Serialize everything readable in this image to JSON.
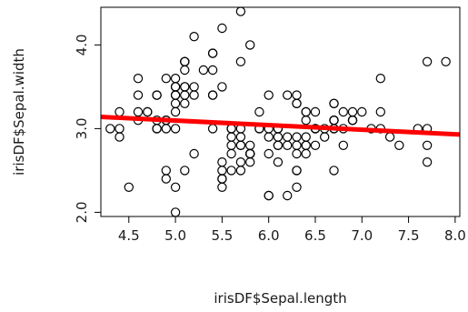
{
  "chart_data": {
    "type": "scatter",
    "title": "",
    "xlabel": "irisDF$Sepal.length",
    "ylabel": "irisDF$Sepal.width",
    "xlim": [
      4.2,
      8.05
    ],
    "ylim": [
      1.95,
      4.45
    ],
    "xticks": [
      "4.5",
      "5.0",
      "5.5",
      "6.0",
      "6.5",
      "7.0",
      "7.5",
      "8.0"
    ],
    "yticks": [
      "2.0",
      "3.0",
      "4.0"
    ],
    "grid": false,
    "point_color": "#000000",
    "fit_line_color": "#ff0000",
    "fit_line": {
      "x": [
        4.2,
        8.05
      ],
      "y": [
        3.14,
        2.93
      ]
    },
    "points": [
      [
        5.1,
        3.5
      ],
      [
        4.9,
        3.0
      ],
      [
        4.7,
        3.2
      ],
      [
        4.6,
        3.1
      ],
      [
        5.0,
        3.6
      ],
      [
        5.4,
        3.9
      ],
      [
        4.6,
        3.4
      ],
      [
        5.0,
        3.4
      ],
      [
        4.4,
        2.9
      ],
      [
        4.9,
        3.1
      ],
      [
        5.4,
        3.7
      ],
      [
        4.8,
        3.4
      ],
      [
        4.8,
        3.0
      ],
      [
        4.3,
        3.0
      ],
      [
        5.8,
        4.0
      ],
      [
        5.7,
        4.4
      ],
      [
        5.4,
        3.9
      ],
      [
        5.1,
        3.5
      ],
      [
        5.7,
        3.8
      ],
      [
        5.1,
        3.8
      ],
      [
        5.4,
        3.4
      ],
      [
        5.1,
        3.7
      ],
      [
        4.6,
        3.6
      ],
      [
        5.1,
        3.3
      ],
      [
        4.8,
        3.4
      ],
      [
        5.0,
        3.0
      ],
      [
        5.0,
        3.4
      ],
      [
        5.2,
        3.5
      ],
      [
        5.2,
        3.4
      ],
      [
        4.7,
        3.2
      ],
      [
        4.8,
        3.1
      ],
      [
        5.4,
        3.4
      ],
      [
        5.2,
        4.1
      ],
      [
        5.5,
        4.2
      ],
      [
        4.9,
        3.1
      ],
      [
        5.0,
        3.2
      ],
      [
        5.5,
        3.5
      ],
      [
        4.9,
        3.6
      ],
      [
        4.4,
        3.0
      ],
      [
        5.1,
        3.4
      ],
      [
        5.0,
        3.5
      ],
      [
        4.5,
        2.3
      ],
      [
        4.4,
        3.2
      ],
      [
        5.0,
        3.5
      ],
      [
        5.1,
        3.8
      ],
      [
        4.8,
        3.0
      ],
      [
        5.1,
        3.8
      ],
      [
        4.6,
        3.2
      ],
      [
        5.3,
        3.7
      ],
      [
        5.0,
        3.3
      ],
      [
        7.0,
        3.2
      ],
      [
        6.4,
        3.2
      ],
      [
        6.9,
        3.1
      ],
      [
        5.5,
        2.3
      ],
      [
        6.5,
        2.8
      ],
      [
        5.7,
        2.8
      ],
      [
        6.3,
        3.3
      ],
      [
        4.9,
        2.4
      ],
      [
        6.6,
        2.9
      ],
      [
        5.2,
        2.7
      ],
      [
        5.0,
        2.0
      ],
      [
        5.9,
        3.0
      ],
      [
        6.0,
        2.2
      ],
      [
        6.1,
        2.9
      ],
      [
        5.6,
        2.9
      ],
      [
        6.7,
        3.1
      ],
      [
        5.6,
        3.0
      ],
      [
        5.8,
        2.7
      ],
      [
        6.2,
        2.2
      ],
      [
        5.6,
        2.5
      ],
      [
        5.9,
        3.2
      ],
      [
        6.1,
        2.8
      ],
      [
        6.3,
        2.5
      ],
      [
        6.1,
        2.8
      ],
      [
        6.4,
        2.9
      ],
      [
        6.6,
        3.0
      ],
      [
        6.8,
        2.8
      ],
      [
        6.7,
        3.0
      ],
      [
        6.0,
        2.9
      ],
      [
        5.7,
        2.6
      ],
      [
        5.5,
        2.4
      ],
      [
        5.5,
        2.4
      ],
      [
        5.8,
        2.7
      ],
      [
        6.0,
        2.7
      ],
      [
        5.4,
        3.0
      ],
      [
        6.0,
        3.4
      ],
      [
        6.7,
        3.1
      ],
      [
        6.3,
        2.3
      ],
      [
        5.6,
        3.0
      ],
      [
        5.5,
        2.5
      ],
      [
        5.5,
        2.6
      ],
      [
        6.1,
        3.0
      ],
      [
        5.8,
        2.6
      ],
      [
        5.0,
        2.3
      ],
      [
        5.6,
        2.7
      ],
      [
        5.7,
        3.0
      ],
      [
        5.7,
        2.9
      ],
      [
        6.2,
        2.9
      ],
      [
        5.1,
        2.5
      ],
      [
        5.7,
        2.8
      ],
      [
        6.3,
        3.3
      ],
      [
        5.8,
        2.7
      ],
      [
        7.1,
        3.0
      ],
      [
        6.3,
        2.9
      ],
      [
        6.5,
        3.0
      ],
      [
        7.6,
        3.0
      ],
      [
        4.9,
        2.5
      ],
      [
        7.3,
        2.9
      ],
      [
        6.7,
        2.5
      ],
      [
        7.2,
        3.6
      ],
      [
        6.5,
        3.2
      ],
      [
        6.4,
        2.7
      ],
      [
        6.8,
        3.0
      ],
      [
        5.7,
        2.5
      ],
      [
        5.8,
        2.8
      ],
      [
        6.4,
        3.2
      ],
      [
        6.5,
        3.0
      ],
      [
        7.7,
        3.8
      ],
      [
        7.7,
        2.6
      ],
      [
        6.0,
        2.2
      ],
      [
        6.9,
        3.2
      ],
      [
        5.6,
        2.8
      ],
      [
        7.7,
        2.8
      ],
      [
        6.3,
        2.7
      ],
      [
        6.7,
        3.3
      ],
      [
        7.2,
        3.2
      ],
      [
        6.2,
        2.8
      ],
      [
        6.1,
        3.0
      ],
      [
        6.4,
        2.8
      ],
      [
        7.2,
        3.0
      ],
      [
        7.4,
        2.8
      ],
      [
        7.9,
        3.8
      ],
      [
        6.4,
        2.8
      ],
      [
        6.3,
        2.8
      ],
      [
        6.1,
        2.6
      ],
      [
        7.7,
        3.0
      ],
      [
        6.3,
        3.4
      ],
      [
        6.4,
        3.1
      ],
      [
        6.0,
        3.0
      ],
      [
        6.9,
        3.1
      ],
      [
        6.7,
        3.1
      ],
      [
        6.9,
        3.1
      ],
      [
        5.8,
        2.7
      ],
      [
        6.8,
        3.2
      ],
      [
        6.7,
        3.3
      ],
      [
        6.7,
        3.0
      ],
      [
        6.3,
        2.5
      ],
      [
        6.5,
        3.0
      ],
      [
        6.2,
        3.4
      ],
      [
        5.9,
        3.0
      ]
    ]
  }
}
